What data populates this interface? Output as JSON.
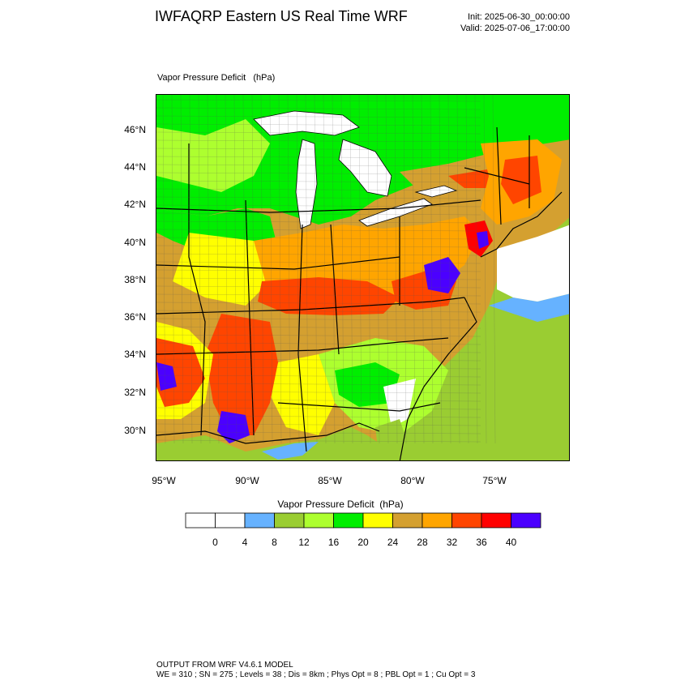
{
  "header": {
    "title": "IWFAQRP Eastern US Real Time WRF",
    "init": "Init: 2025-06-30_00:00:00",
    "valid": "Valid: 2025-07-06_17:00:00"
  },
  "field_title": "Vapor Pressure Deficit   (hPa)",
  "map": {
    "latitude_labels": [
      "46°N",
      "44°N",
      "42°N",
      "40°N",
      "38°N",
      "36°N",
      "34°N",
      "32°N",
      "30°N"
    ],
    "longitude_labels": [
      "95°W",
      "90°W",
      "85°W",
      "80°W",
      "75°W"
    ],
    "colors": {
      "land_base": "#f5a623",
      "water": "#ffffff",
      "ocean_low": "#66b2ff",
      "ocean": "#9acd32",
      "borders": "#000000"
    }
  },
  "colorbar": {
    "title": "Vapor Pressure Deficit  (hPa)",
    "tick_labels": [
      "0",
      "4",
      "8",
      "12",
      "16",
      "20",
      "24",
      "28",
      "32",
      "36",
      "40"
    ],
    "colors": [
      "#ffffff",
      "#ffffff",
      "#66b2ff",
      "#9acd32",
      "#adff2f",
      "#00ee00",
      "#ffff00",
      "#d4a030",
      "#ffa500",
      "#ff4500",
      "#ff0000",
      "#4b00ff"
    ]
  },
  "footer": {
    "line1": "OUTPUT FROM WRF V4.6.1 MODEL",
    "line2": "WE = 310 ; SN = 275 ; Levels = 38 ; Dis = 8km ; Phys Opt = 8 ; PBL Opt = 1 ; Cu Opt = 3"
  }
}
